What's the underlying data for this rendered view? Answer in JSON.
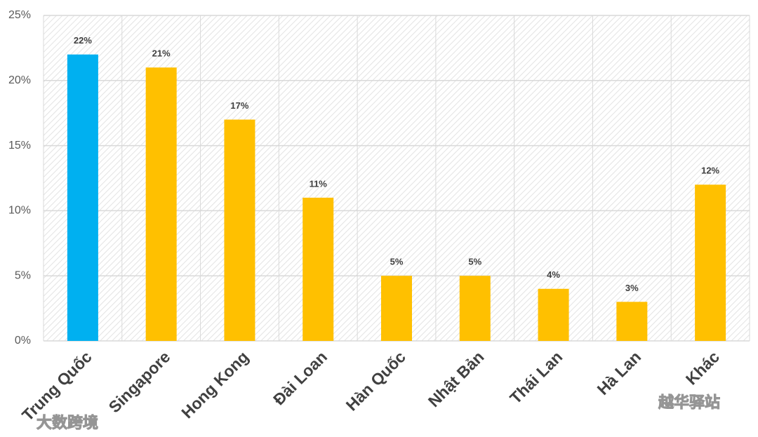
{
  "chart_data": {
    "type": "bar",
    "categories": [
      "Trung Quốc",
      "Singapore",
      "Hong Kong",
      "Đài Loan",
      "Hàn Quốc",
      "Nhật Bản",
      "Thái Lan",
      "Hà Lan",
      "Khác"
    ],
    "values": [
      22,
      21,
      17,
      11,
      5,
      5,
      4,
      3,
      12
    ],
    "value_labels": [
      "22%",
      "21%",
      "17%",
      "11%",
      "5%",
      "5%",
      "4%",
      "3%",
      "12%"
    ],
    "colors": [
      "#00b0f0",
      "#ffc000",
      "#ffc000",
      "#ffc000",
      "#ffc000",
      "#ffc000",
      "#ffc000",
      "#ffc000",
      "#ffc000"
    ],
    "ylim": [
      0,
      25
    ],
    "yticks": [
      {
        "value": 0,
        "label": "0%"
      },
      {
        "value": 5,
        "label": "5%"
      },
      {
        "value": 10,
        "label": "10%"
      },
      {
        "value": 15,
        "label": "15%"
      },
      {
        "value": 20,
        "label": "20%"
      },
      {
        "value": 25,
        "label": "25%"
      }
    ],
    "grid": true,
    "watermarks": [
      "大数跨境",
      "越华驿站"
    ]
  }
}
